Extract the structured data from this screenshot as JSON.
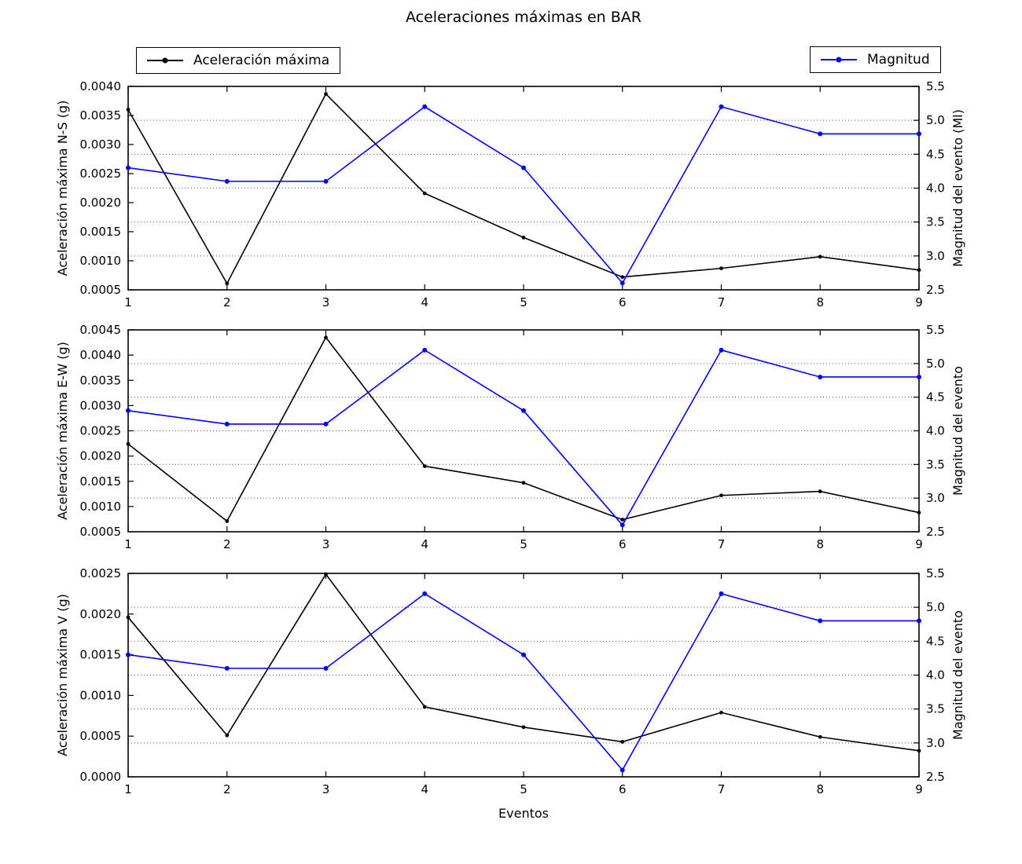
{
  "title": "Aceleraciones máximas en BAR",
  "xlabel": "Eventos",
  "legends": {
    "acceleration": "Aceleración máxima",
    "magnitude": "Magnitud"
  },
  "colors": {
    "acceleration": "#000000",
    "magnitude": "#0000ff",
    "grid": "#555555",
    "background": "#ffffff"
  },
  "chart_data": [
    {
      "type": "line",
      "x": [
        1,
        2,
        3,
        4,
        5,
        6,
        7,
        8,
        9
      ],
      "xticks": [
        1,
        2,
        3,
        4,
        5,
        6,
        7,
        8,
        9
      ],
      "xlim": [
        1,
        9
      ],
      "ylabel_left": "Aceleración máxima N-S (g)",
      "ylabel_right": "Magnitud del evento (Ml)",
      "ylim_left": [
        0.0005,
        0.004
      ],
      "yticks_left": [
        0.0005,
        0.001,
        0.0015,
        0.002,
        0.0025,
        0.003,
        0.0035,
        0.004
      ],
      "ytick_decimals_left": 4,
      "ylim_right": [
        2.5,
        5.5
      ],
      "yticks_right": [
        2.5,
        3.0,
        3.5,
        4.0,
        4.5,
        5.0,
        5.5
      ],
      "ytick_decimals_right": 1,
      "grid": "dotted-horizontal-right-ticks",
      "series": [
        {
          "name": "Aceleración máxima",
          "axis": "left",
          "color": "#000000",
          "values": [
            0.0036,
            0.00061,
            0.00387,
            0.00216,
            0.0014,
            0.00072,
            0.00087,
            0.00107,
            0.00084
          ]
        },
        {
          "name": "Magnitud",
          "axis": "right",
          "color": "#0000ff",
          "values": [
            4.3,
            4.1,
            4.1,
            5.2,
            4.3,
            2.6,
            5.2,
            4.8,
            4.8
          ]
        }
      ]
    },
    {
      "type": "line",
      "x": [
        1,
        2,
        3,
        4,
        5,
        6,
        7,
        8,
        9
      ],
      "xticks": [
        1,
        2,
        3,
        4,
        5,
        6,
        7,
        8,
        9
      ],
      "xlim": [
        1,
        9
      ],
      "ylabel_left": "Aceleración máxima E-W (g)",
      "ylabel_right": "Magnitud del evento",
      "ylim_left": [
        0.0005,
        0.0045
      ],
      "yticks_left": [
        0.0005,
        0.001,
        0.0015,
        0.002,
        0.0025,
        0.003,
        0.0035,
        0.004,
        0.0045
      ],
      "ytick_decimals_left": 4,
      "ylim_right": [
        2.5,
        5.5
      ],
      "yticks_right": [
        2.5,
        3.0,
        3.5,
        4.0,
        4.5,
        5.0,
        5.5
      ],
      "ytick_decimals_right": 1,
      "grid": "dotted-horizontal-right-ticks",
      "series": [
        {
          "name": "Aceleración máxima",
          "axis": "left",
          "color": "#000000",
          "values": [
            0.00224,
            0.00071,
            0.00435,
            0.0018,
            0.00147,
            0.00074,
            0.00122,
            0.0013,
            0.00088
          ]
        },
        {
          "name": "Magnitud",
          "axis": "right",
          "color": "#0000ff",
          "values": [
            4.3,
            4.1,
            4.1,
            5.2,
            4.3,
            2.6,
            5.2,
            4.8,
            4.8
          ]
        }
      ]
    },
    {
      "type": "line",
      "x": [
        1,
        2,
        3,
        4,
        5,
        6,
        7,
        8,
        9
      ],
      "xticks": [
        1,
        2,
        3,
        4,
        5,
        6,
        7,
        8,
        9
      ],
      "xlim": [
        1,
        9
      ],
      "ylabel_left": "Aceleración máxima V (g)",
      "ylabel_right": "Magnitud del evento",
      "ylim_left": [
        0.0,
        0.0025
      ],
      "yticks_left": [
        0.0,
        0.0005,
        0.001,
        0.0015,
        0.002,
        0.0025
      ],
      "ytick_decimals_left": 4,
      "ylim_right": [
        2.5,
        5.5
      ],
      "yticks_right": [
        2.5,
        3.0,
        3.5,
        4.0,
        4.5,
        5.0,
        5.5
      ],
      "ytick_decimals_right": 1,
      "grid": "dotted-horizontal-right-ticks",
      "series": [
        {
          "name": "Aceleración máxima",
          "axis": "left",
          "color": "#000000",
          "values": [
            0.00196,
            0.00051,
            0.00249,
            0.00086,
            0.00061,
            0.00043,
            0.00079,
            0.00049,
            0.00032
          ]
        },
        {
          "name": "Magnitud",
          "axis": "right",
          "color": "#0000ff",
          "values": [
            4.3,
            4.1,
            4.1,
            5.2,
            4.3,
            2.6,
            5.2,
            4.8,
            4.8
          ]
        }
      ]
    }
  ]
}
